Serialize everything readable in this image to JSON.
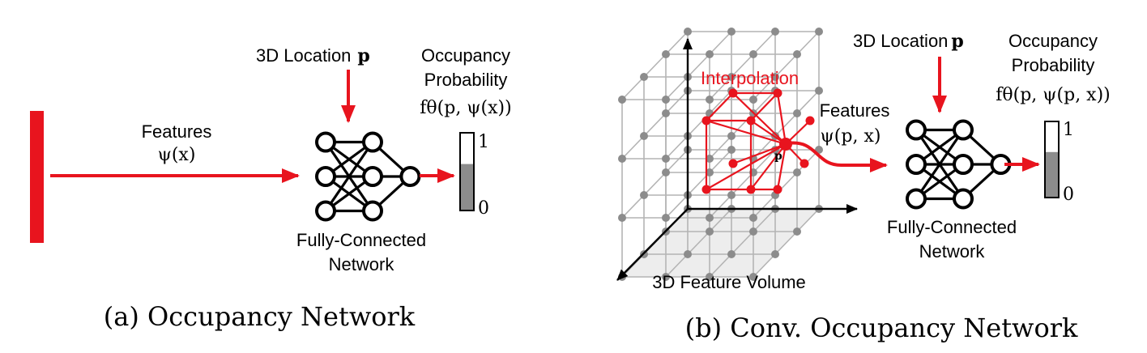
{
  "panel_a": {
    "input_label": "3D Location",
    "input_symbol": "p",
    "output_label_line1": "Occupancy",
    "output_label_line2": "Probability",
    "output_formula": "fθ(p, ψ(x))",
    "features_label": "Features",
    "features_formula": "ψ(x)",
    "network_label_line1": "Fully-Connected",
    "network_label_line2": "Network",
    "scale_top": "1",
    "scale_bottom": "0",
    "bar_fill_fraction": 0.6,
    "caption": "(a) Occupancy Network"
  },
  "panel_b": {
    "interpolation_label": "Interpolation",
    "point_label": "p",
    "volume_label": "3D Feature Volume",
    "input_label": "3D Location",
    "input_symbol": "p",
    "output_label_line1": "Occupancy",
    "output_label_line2": "Probability",
    "output_formula": "fθ(p, ψ(p, x))",
    "features_label": "Features",
    "features_formula": "ψ(p, x)",
    "network_label_line1": "Fully-Connected",
    "network_label_line2": "Network",
    "scale_top": "1",
    "scale_bottom": "0",
    "bar_fill_fraction": 0.6,
    "caption": "(b) Conv. Occupancy Network"
  },
  "colors": {
    "accent_red": "#e8141e",
    "bar_gray": "#8c8c8c",
    "grid_gray": "#b4b4b4"
  }
}
